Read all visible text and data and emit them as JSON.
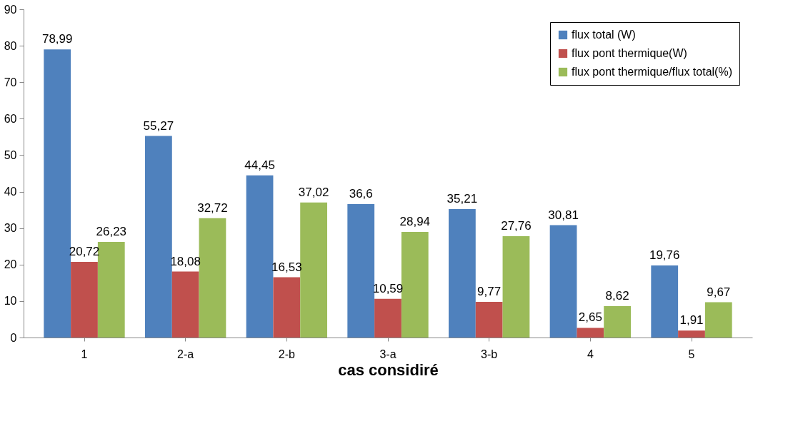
{
  "chart_data": {
    "type": "bar",
    "xlabel": "cas considiré",
    "categories": [
      "1",
      "2-a",
      "2-b",
      "3-a",
      "3-b",
      "4",
      "5"
    ],
    "series": [
      {
        "name": "flux total (W)",
        "color": "#4f81bd",
        "values": [
          78.99,
          55.27,
          44.45,
          36.6,
          35.21,
          30.81,
          19.76
        ],
        "value_labels": [
          "78,99",
          "55,27",
          "44,45",
          "36,6",
          "35,21",
          "30,81",
          "19,76"
        ]
      },
      {
        "name": "flux pont thermique(W)",
        "color": "#c0504d",
        "values": [
          20.72,
          18.08,
          16.53,
          10.59,
          9.77,
          2.65,
          1.91
        ],
        "value_labels": [
          "20,72",
          "18,08",
          "16,53",
          "10,59",
          "9,77",
          "2,65",
          "1,91"
        ]
      },
      {
        "name": "flux pont thermique/flux total(%)",
        "color": "#9bbb59",
        "values": [
          26.23,
          32.72,
          37.02,
          28.94,
          27.76,
          8.62,
          9.67
        ],
        "value_labels": [
          "26,23",
          "32,72",
          "37,02",
          "28,94",
          "27,76",
          "8,62",
          "9,67"
        ]
      }
    ],
    "ylim": [
      0,
      90
    ],
    "yticks": [
      0,
      10,
      20,
      30,
      40,
      50,
      60,
      70,
      80,
      90
    ],
    "grid": false,
    "legend": "top right"
  }
}
